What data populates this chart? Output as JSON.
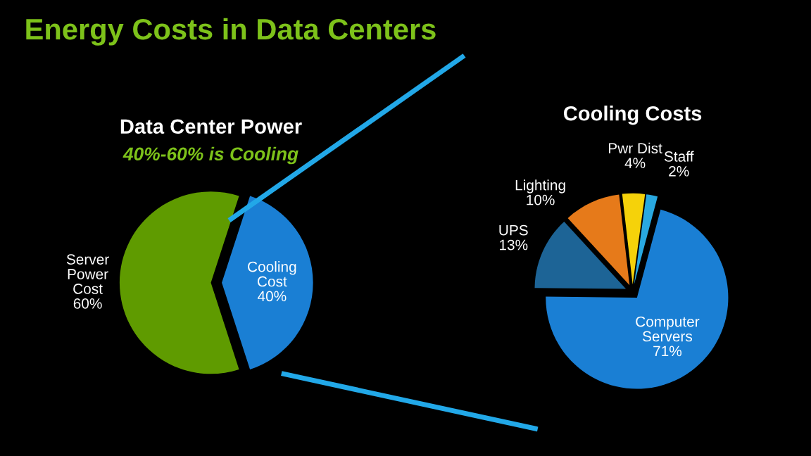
{
  "chart_data": [
    {
      "type": "pie",
      "title": "Data Center Power",
      "subtitle": "40%-60% is Cooling",
      "annotations": [
        "Energy Costs in Data Centers"
      ],
      "categories": [
        "Server\nPower\nCost",
        "Cooling\nCost"
      ],
      "values": [
        60,
        40
      ],
      "colors": [
        "#5f9b00",
        "#1a7fd4"
      ],
      "value_labels": [
        "60%",
        "40%"
      ]
    },
    {
      "type": "pie",
      "title": "Cooling Costs",
      "categories": [
        "Computer\nServers",
        "UPS",
        "Lighting",
        "Pwr Dist",
        "Staff"
      ],
      "values": [
        71,
        13,
        10,
        4,
        2
      ],
      "colors": [
        "#1a7fd4",
        "#1d6496",
        "#e67a1a",
        "#f5d20a",
        "#29a8e0"
      ],
      "value_labels": [
        "71%",
        "13%",
        "10%",
        "4%",
        "2%"
      ]
    }
  ]
}
